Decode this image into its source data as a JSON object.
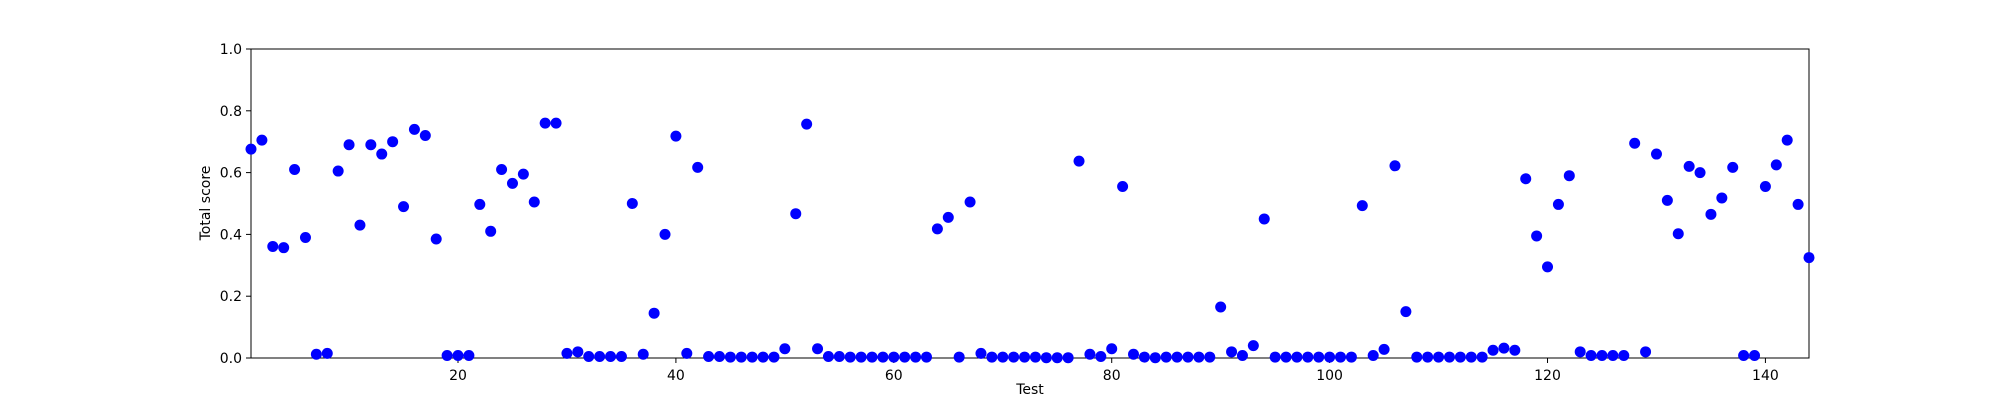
{
  "chart_data": {
    "type": "scatter",
    "xlabel": "Test",
    "ylabel": "Total score",
    "color": "#0000ff",
    "x": [
      1,
      2,
      3,
      4,
      5,
      6,
      7,
      8,
      9,
      10,
      11,
      12,
      13,
      14,
      15,
      16,
      17,
      18,
      19,
      20,
      21,
      22,
      23,
      24,
      25,
      26,
      27,
      28,
      29,
      30,
      31,
      32,
      33,
      34,
      35,
      36,
      37,
      38,
      39,
      40,
      41,
      42,
      43,
      44,
      45,
      46,
      47,
      48,
      49,
      50,
      51,
      52,
      53,
      54,
      55,
      56,
      57,
      58,
      59,
      60,
      61,
      62,
      63,
      64,
      65,
      66,
      67,
      68,
      69,
      70,
      71,
      72,
      73,
      74,
      75,
      76,
      77,
      78,
      79,
      80,
      81,
      82,
      83,
      84,
      85,
      86,
      87,
      88,
      89,
      90,
      91,
      92,
      93,
      94,
      95,
      96,
      97,
      98,
      99,
      100,
      101,
      102,
      103,
      104,
      105,
      106,
      107,
      108,
      109,
      110,
      111,
      112,
      113,
      114,
      115,
      116,
      117,
      118,
      119,
      120,
      121,
      122,
      123,
      124,
      125,
      126,
      127,
      128,
      129,
      130,
      131,
      132,
      133,
      134,
      135,
      136,
      137,
      138,
      139,
      140,
      141,
      142,
      143,
      144
    ],
    "values": [
      0.676,
      0.705,
      0.361,
      0.357,
      0.61,
      0.39,
      0.012,
      0.015,
      0.605,
      0.69,
      0.43,
      0.69,
      0.66,
      0.7,
      0.49,
      0.74,
      0.72,
      0.385,
      0.008,
      0.008,
      0.008,
      0.497,
      0.41,
      0.61,
      0.565,
      0.595,
      0.505,
      0.76,
      0.76,
      0.015,
      0.02,
      0.005,
      0.005,
      0.005,
      0.005,
      0.5,
      0.012,
      0.145,
      0.4,
      0.718,
      0.015,
      0.617,
      0.005,
      0.005,
      0.003,
      0.003,
      0.003,
      0.003,
      0.003,
      0.03,
      0.467,
      0.757,
      0.03,
      0.005,
      0.005,
      0.003,
      0.003,
      0.003,
      0.003,
      0.003,
      0.003,
      0.003,
      0.003,
      0.418,
      0.455,
      0.003,
      0.505,
      0.015,
      0.003,
      0.003,
      0.003,
      0.003,
      0.003,
      0.001,
      0.001,
      0.001,
      0.637,
      0.012,
      0.005,
      0.03,
      0.555,
      0.012,
      0.003,
      0.001,
      0.003,
      0.003,
      0.003,
      0.003,
      0.003,
      0.165,
      0.02,
      0.008,
      0.04,
      0.45,
      0.003,
      0.003,
      0.003,
      0.003,
      0.003,
      0.003,
      0.003,
      0.003,
      0.493,
      0.008,
      0.028,
      0.622,
      0.15,
      0.003,
      0.003,
      0.003,
      0.003,
      0.003,
      0.003,
      0.003,
      0.025,
      0.032,
      0.025,
      0.58,
      0.395,
      0.295,
      0.497,
      0.59,
      0.02,
      0.008,
      0.008,
      0.008,
      0.008,
      0.695,
      0.02,
      0.66,
      0.51,
      0.402,
      0.62,
      0.6,
      0.465,
      0.518,
      0.617,
      0.008,
      0.008,
      0.555,
      0.625,
      0.705,
      0.497,
      0.325
    ],
    "xlim": [
      1,
      144
    ],
    "xticks": [
      20,
      40,
      60,
      80,
      100,
      120,
      140
    ],
    "ylim": [
      0,
      1
    ],
    "yticks": [
      {
        "value": 0,
        "label": "0.0"
      },
      0.2,
      0.4,
      0.6,
      0.8,
      {
        "value": 1,
        "label": "1.0"
      }
    ]
  }
}
